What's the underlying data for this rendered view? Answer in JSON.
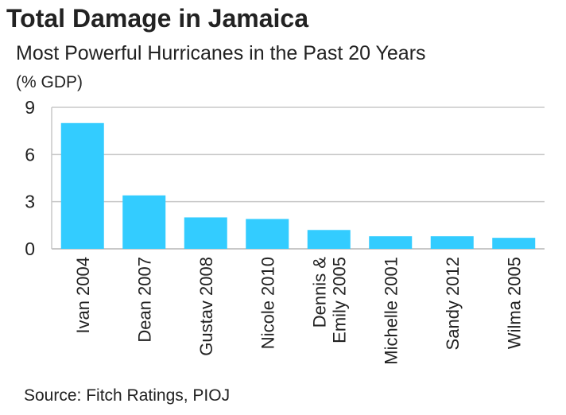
{
  "chart_data": {
    "type": "bar",
    "title": "Total Damage in Jamaica",
    "subtitle": "Most Powerful Hurricanes in the Past 20 Years",
    "ylabel": "(% GDP)",
    "xlabel": "",
    "categories": [
      "Ivan 2004",
      "Dean 2007",
      "Gustav 2008",
      "Nicole 2010",
      "Dennis & Emily 2005",
      "Michelle 2001",
      "Sandy 2012",
      "Wilma 2005"
    ],
    "category_lines": [
      [
        "Ivan 2004"
      ],
      [
        "Dean 2007"
      ],
      [
        "Gustav 2008"
      ],
      [
        "Nicole 2010"
      ],
      [
        "Dennis &",
        "Emily 2005"
      ],
      [
        "Michelle 2001"
      ],
      [
        "Sandy 2012"
      ],
      [
        "Wilma 2005"
      ]
    ],
    "values": [
      8.0,
      3.4,
      2.0,
      1.9,
      1.2,
      0.8,
      0.8,
      0.7
    ],
    "ylim": [
      0,
      9
    ],
    "yticks": [
      0,
      3,
      6,
      9
    ],
    "grid": true,
    "legend": "none",
    "bar_color": "#33ccff",
    "grid_color": "#c8c8c8",
    "source": "Source: Fitch Ratings, PIOJ"
  }
}
